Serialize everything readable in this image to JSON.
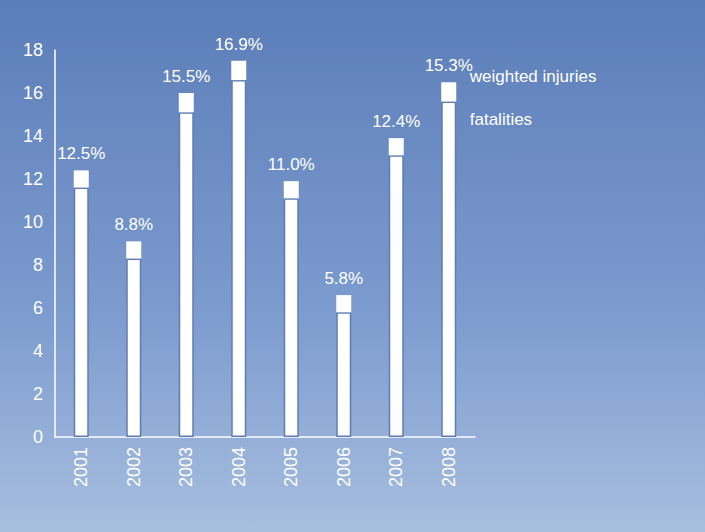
{
  "chart_data": {
    "type": "bar",
    "categories": [
      "2001",
      "2002",
      "2003",
      "2004",
      "2005",
      "2006",
      "2007",
      "2008"
    ],
    "series": [
      {
        "name": "fatalities",
        "color": "#ffffff",
        "values": [
          11.6,
          8.3,
          15.1,
          16.6,
          11.1,
          5.8,
          13.1,
          15.6
        ]
      },
      {
        "name": "weighted injuries",
        "color": "#ffffff",
        "values": [
          0.8,
          0.8,
          0.9,
          0.9,
          0.8,
          0.8,
          0.8,
          0.9
        ]
      }
    ],
    "annotations": [
      "12.5%",
      "8.8%",
      "15.5%",
      "16.9%",
      "11.0%",
      "5.8%",
      "12.4%",
      "15.3%"
    ],
    "stacked": true,
    "ylim": [
      0,
      18
    ],
    "yticks": [
      0,
      2,
      4,
      6,
      8,
      10,
      12,
      14,
      16,
      18
    ],
    "grid": false
  }
}
